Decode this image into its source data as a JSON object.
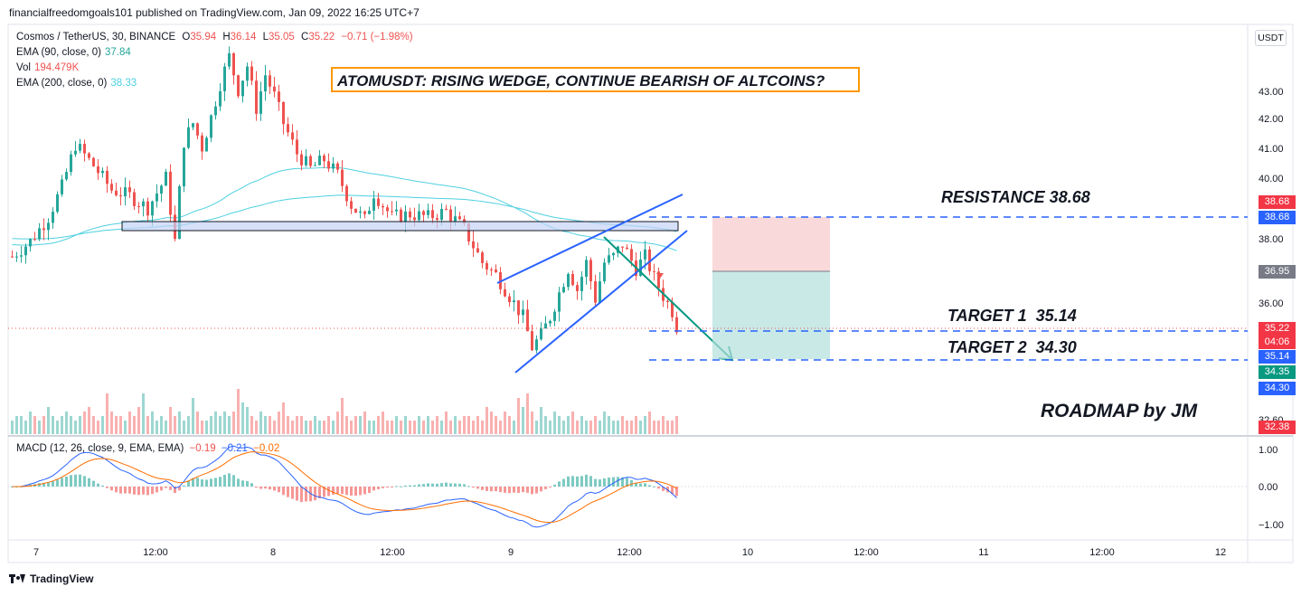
{
  "publish_line": "financialfreedomgoals101 published on TradingView.com, Jan 09, 2022 16:25 UTC+7",
  "footer_brand": "TradingView",
  "currency_button": "USDT",
  "legend": {
    "symbol": "Cosmos / TetherUS, 30, BINANCE",
    "o_label": "O",
    "o": "35.94",
    "h_label": "H",
    "h": "36.14",
    "l_label": "L",
    "l": "35.05",
    "c_label": "C",
    "c": "35.22",
    "change": "−0.71 (−1.98%)",
    "ema90_label": "EMA (90, close, 0)",
    "ema90": "37.84",
    "vol_label": "Vol",
    "vol": "194.479K",
    "ema200_label": "EMA (200, close, 0)",
    "ema200": "38.33"
  },
  "macd_legend": {
    "label": "MACD (12, 26, close, 9, EMA, EMA)",
    "hist": "−0.19",
    "macd": "−0.21",
    "signal": "−0.02"
  },
  "annotations": {
    "title": "ATOMUSDT: RISING WEDGE, CONTINUE BEARISH OF ALTCOINS?",
    "resistance": "RESISTANCE 38.68",
    "target1": "TARGET 1  35.14",
    "target2": "TARGET 2  34.30",
    "roadmap": "ROADMAP by JM"
  },
  "price_tags": [
    {
      "value": "38.68",
      "color": "#f23645"
    },
    {
      "value": "38.68",
      "color": "#2962ff"
    },
    {
      "value": "36.95",
      "color": "#787b86"
    },
    {
      "value": "35.22",
      "color": "#f23645"
    },
    {
      "value": "04:06",
      "color": "#f23645"
    },
    {
      "value": "35.14",
      "color": "#2962ff"
    },
    {
      "value": "34.35",
      "color": "#089981"
    },
    {
      "value": "34.30",
      "color": "#2962ff"
    },
    {
      "value": "32.38",
      "color": "#f23645"
    }
  ],
  "colors": {
    "up": "#26a69a",
    "down": "#ef5350",
    "ema": "#4dd0e1",
    "macd": "#2962ff",
    "signal": "#ff6d00",
    "annotation_blue": "#2962ff"
  },
  "chart_data": {
    "type": "candlestick",
    "price_axis": {
      "ticks": [
        "43.00",
        "42.00",
        "41.00",
        "40.00",
        "38.00",
        "36.00",
        "32.60"
      ]
    },
    "time_axis": {
      "ticks": [
        "7",
        "12:00",
        "8",
        "12:00",
        "9",
        "12:00",
        "10",
        "12:00",
        "11",
        "12:00",
        "12"
      ]
    },
    "macd_axis": {
      "ticks": [
        "1.00",
        "0.00",
        "−1.00"
      ]
    },
    "price_path": [
      [
        0,
        37.6
      ],
      [
        4,
        38.1
      ],
      [
        8,
        38.9
      ],
      [
        11,
        39.9
      ],
      [
        14,
        41.3
      ],
      [
        18,
        40.6
      ],
      [
        22,
        39.8
      ],
      [
        26,
        39.6
      ],
      [
        30,
        39.2
      ],
      [
        34,
        40.2
      ],
      [
        36,
        38.1
      ],
      [
        38,
        41.4
      ],
      [
        40,
        42.0
      ],
      [
        42,
        41.2
      ],
      [
        44,
        42.2
      ],
      [
        46,
        43.3
      ],
      [
        48,
        44.2
      ],
      [
        50,
        43.1
      ],
      [
        52,
        43.9
      ],
      [
        54,
        42.5
      ],
      [
        56,
        43.6
      ],
      [
        58,
        42.9
      ],
      [
        60,
        42.0
      ],
      [
        63,
        41.0
      ],
      [
        66,
        40.5
      ],
      [
        69,
        40.8
      ],
      [
        72,
        40.3
      ],
      [
        75,
        39.3
      ],
      [
        78,
        38.8
      ],
      [
        80,
        39.7
      ],
      [
        84,
        38.9
      ],
      [
        88,
        39.0
      ],
      [
        92,
        38.9
      ],
      [
        96,
        39.1
      ],
      [
        100,
        38.5
      ],
      [
        104,
        37.4
      ],
      [
        107,
        37.0
      ],
      [
        110,
        36.3
      ],
      [
        113,
        35.6
      ],
      [
        115,
        34.6
      ],
      [
        117,
        35.0
      ],
      [
        119,
        35.6
      ],
      [
        121,
        36.4
      ],
      [
        123,
        37.2
      ],
      [
        125,
        36.5
      ],
      [
        127,
        37.4
      ],
      [
        129,
        36.2
      ],
      [
        131,
        37.4
      ],
      [
        133,
        37.6
      ],
      [
        135,
        38.0
      ],
      [
        138,
        37.2
      ],
      [
        140,
        37.6
      ],
      [
        142,
        36.9
      ],
      [
        144,
        36.3
      ],
      [
        146,
        35.8
      ],
      [
        147,
        35.3
      ]
    ],
    "volume": [
      3,
      4,
      4,
      3,
      5,
      4,
      3,
      4,
      6,
      4,
      3,
      4,
      5,
      4,
      3,
      4,
      5,
      6,
      4,
      3,
      4,
      9,
      5,
      4,
      4,
      3,
      5,
      4,
      6,
      9,
      4,
      5,
      3,
      4,
      3,
      6,
      4,
      5,
      3,
      4,
      8,
      5,
      3,
      3,
      4,
      5,
      4,
      5,
      4,
      5,
      10,
      7,
      6,
      4,
      3,
      5,
      4,
      4,
      3,
      5,
      7,
      4,
      3,
      4,
      4,
      3,
      3,
      4,
      3,
      3,
      4,
      3,
      5,
      8,
      4,
      3,
      4,
      4,
      5,
      3,
      3,
      4,
      5,
      3,
      3,
      4,
      3,
      4,
      3,
      3,
      4,
      3,
      4,
      3,
      4,
      3,
      5,
      3,
      4,
      3,
      4,
      4,
      3,
      4,
      3,
      6,
      5,
      4,
      3,
      5,
      4,
      3,
      8,
      6,
      9,
      5,
      3,
      6,
      4,
      3,
      5,
      4,
      3,
      4,
      5,
      3,
      4,
      3,
      3,
      4,
      3,
      5,
      4,
      3,
      3,
      4,
      3,
      3,
      4,
      3,
      4,
      5,
      3,
      3,
      4,
      3,
      3,
      4
    ]
  }
}
